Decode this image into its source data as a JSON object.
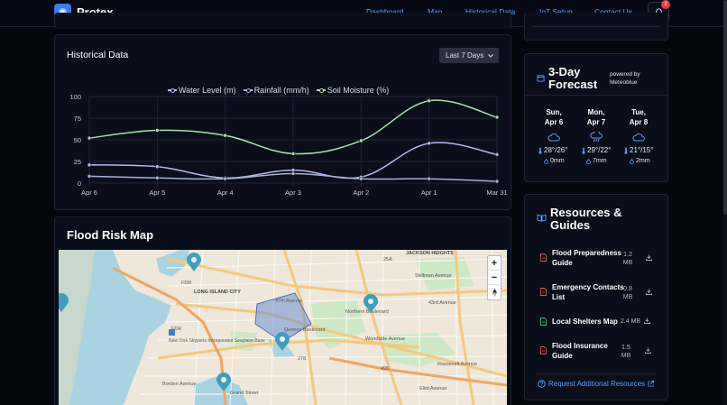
{
  "nav": {
    "brand": "Protex",
    "links": [
      "Dashboard",
      "Map",
      "Historical Data",
      "IoT Setup",
      "Contact Us"
    ],
    "notification_count": "2"
  },
  "historical": {
    "title": "Historical Data",
    "range": "Last 7 Days"
  },
  "chart_data": {
    "type": "line",
    "categories": [
      "Apr 6",
      "Apr 5",
      "Apr 4",
      "Apr 3",
      "Apr 2",
      "Apr 1",
      "Mar 31"
    ],
    "series": [
      {
        "name": "Water Level (m)",
        "color": "#b6b8f0",
        "values": [
          21,
          19,
          6,
          15,
          7,
          46,
          33
        ]
      },
      {
        "name": "Rainfall (mm/h)",
        "color": "#a5b3d6",
        "values": [
          8,
          6,
          5,
          11,
          5,
          5,
          2
        ]
      },
      {
        "name": "Soil Moisture (%)",
        "color": "#a6e2ac",
        "values": [
          52,
          61,
          55,
          34,
          49,
          95,
          76
        ]
      }
    ],
    "yticks": [
      "0",
      "25",
      "50",
      "75",
      "100"
    ],
    "ylim": [
      0,
      100
    ],
    "grid": true,
    "legend_position": "top"
  },
  "map": {
    "title": "Flood Risk Map",
    "zoom_in": "+",
    "zoom_out": "−",
    "labels": [
      "LONG ISLAND CITY",
      "New York Skyports Incorporated Seaplane Base",
      "JACKSON HEIGHTS",
      "FDR",
      "FDR",
      "25A",
      "278",
      "495",
      "47th Avenue",
      "Skillman Avenue",
      "Queens Boulevard",
      "43rd Avenue",
      "Woodside Avenue",
      "Eliot Avenue",
      "Roosevelt Avenue",
      "Northern Boulevard",
      "Borden Avenue",
      "Grand Street"
    ]
  },
  "forecast": {
    "title": "3-Day Forecast",
    "powered_by": "powered by Meteoblue",
    "days": [
      {
        "day": "Sun,",
        "date": "Apr 6",
        "icon": "cloud-icon",
        "temp": "28°/26°",
        "rain": "0mm"
      },
      {
        "day": "Mon,",
        "date": "Apr 7",
        "icon": "cloud-rain-icon",
        "temp": "29°/22°",
        "rain": "7mm"
      },
      {
        "day": "Tue,",
        "date": "Apr 8",
        "icon": "cloud-icon",
        "temp": "21°/15°",
        "rain": "2mm"
      }
    ]
  },
  "resources": {
    "title": "Resources & Guides",
    "items": [
      {
        "name": "Flood Preparedness Guide",
        "size": "1.2 MB",
        "color": "#e05252"
      },
      {
        "name": "Emergency Contacts List",
        "size": "0.8 MB",
        "color": "#e05252"
      },
      {
        "name": "Local Shelters Map",
        "size": "2.4 MB",
        "color": "#3fb96b"
      },
      {
        "name": "Flood Insurance Guide",
        "size": "1.5 MB",
        "color": "#e05252"
      }
    ],
    "request_link": "Request Additional Resources"
  }
}
